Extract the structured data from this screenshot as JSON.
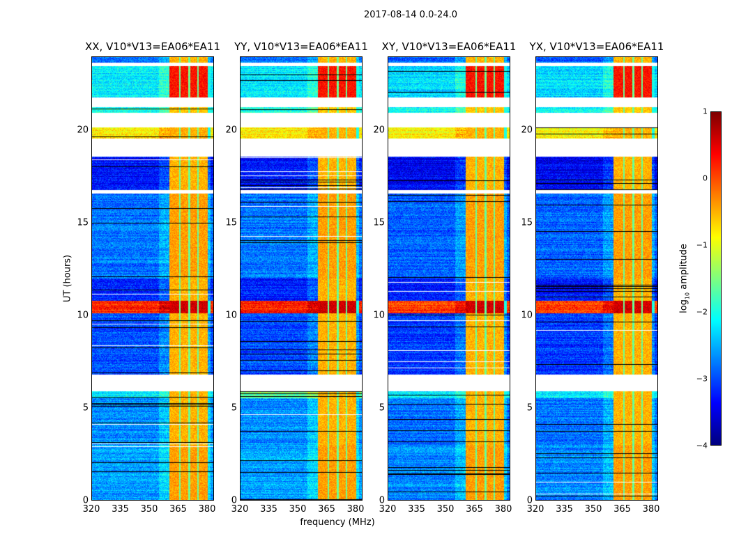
{
  "suptitle": "2017-08-14 0.0-24.0",
  "chart_data": {
    "type": "heatmap",
    "title": "2017-08-14 0.0-24.0",
    "xlabel": "frequency (MHz)",
    "ylabel": "UT (hours)",
    "xlim": [
      320,
      383.6
    ],
    "ylim": [
      0,
      24
    ],
    "xticks": [
      "320",
      "335",
      "350",
      "365",
      "380"
    ],
    "xtick_values": [
      320,
      335,
      350,
      365,
      380
    ],
    "yticks": [
      "0",
      "5",
      "10",
      "15",
      "20"
    ],
    "ytick_values": [
      0,
      5,
      10,
      15,
      20
    ],
    "colormap": "jet",
    "colorbar": {
      "label_main": "log",
      "label_sub": "10",
      "label_rest": " amplitude",
      "range": [
        -4,
        1
      ],
      "ticks": [
        "1",
        "0",
        "−1",
        "−2",
        "−3",
        "−4"
      ],
      "tick_values": [
        1,
        0,
        -1,
        -2,
        -3,
        -4
      ]
    },
    "panels": [
      {
        "title": "XX, V10*V13=EA06*EA11",
        "offset": 0.0,
        "seg_5_5": -2.2
      },
      {
        "title": "YY, V10*V13=EA06*EA11",
        "offset": 0.0,
        "seg_5_5": -1.6
      },
      {
        "title": "XY, V10*V13=EA06*EA11",
        "offset": -0.1,
        "seg_5_5": -2.1
      },
      {
        "title": "YX, V10*V13=EA06*EA11",
        "offset": -0.1,
        "seg_5_5": -2.1
      }
    ],
    "band_MHz": [
      360.5,
      380.5
    ],
    "band_gaps_MHz": [
      366,
      371,
      375.6
    ],
    "time_segments": [
      {
        "start": 0.0,
        "end": 3.0,
        "base": -2.6,
        "band": -0.4
      },
      {
        "start": 3.0,
        "end": 5.5,
        "base": -2.7,
        "band": -0.5
      },
      {
        "start": 5.5,
        "end": 5.9,
        "base": "seg_5_5",
        "band": -0.5
      },
      {
        "start": 5.9,
        "end": 6.8,
        "flagged": true
      },
      {
        "start": 6.8,
        "end": 10.1,
        "base": -3.0,
        "band": -0.5
      },
      {
        "start": 10.1,
        "end": 10.8,
        "base": 0.2,
        "band": 0.6
      },
      {
        "start": 10.8,
        "end": 12.0,
        "base": -3.2,
        "band": -0.5
      },
      {
        "start": 12.0,
        "end": 16.6,
        "base": -2.8,
        "band": -0.4
      },
      {
        "start": 16.6,
        "end": 16.8,
        "flagged": true
      },
      {
        "start": 16.8,
        "end": 18.6,
        "base": -3.3,
        "band": -0.5
      },
      {
        "start": 18.6,
        "end": 19.6,
        "flagged": true
      },
      {
        "start": 19.6,
        "end": 20.2,
        "base": -0.8,
        "band": -0.5
      },
      {
        "start": 20.2,
        "end": 21.0,
        "flagged": true
      },
      {
        "start": 21.0,
        "end": 21.3,
        "base": -2.0,
        "band": -0.6
      },
      {
        "start": 21.3,
        "end": 21.8,
        "flagged": true
      },
      {
        "start": 21.8,
        "end": 23.5,
        "base": -2.2,
        "band": 0.3
      },
      {
        "start": 23.5,
        "end": 23.7,
        "flagged": true
      },
      {
        "start": 23.7,
        "end": 24.0,
        "base": -2.8,
        "band": -0.5
      }
    ]
  }
}
